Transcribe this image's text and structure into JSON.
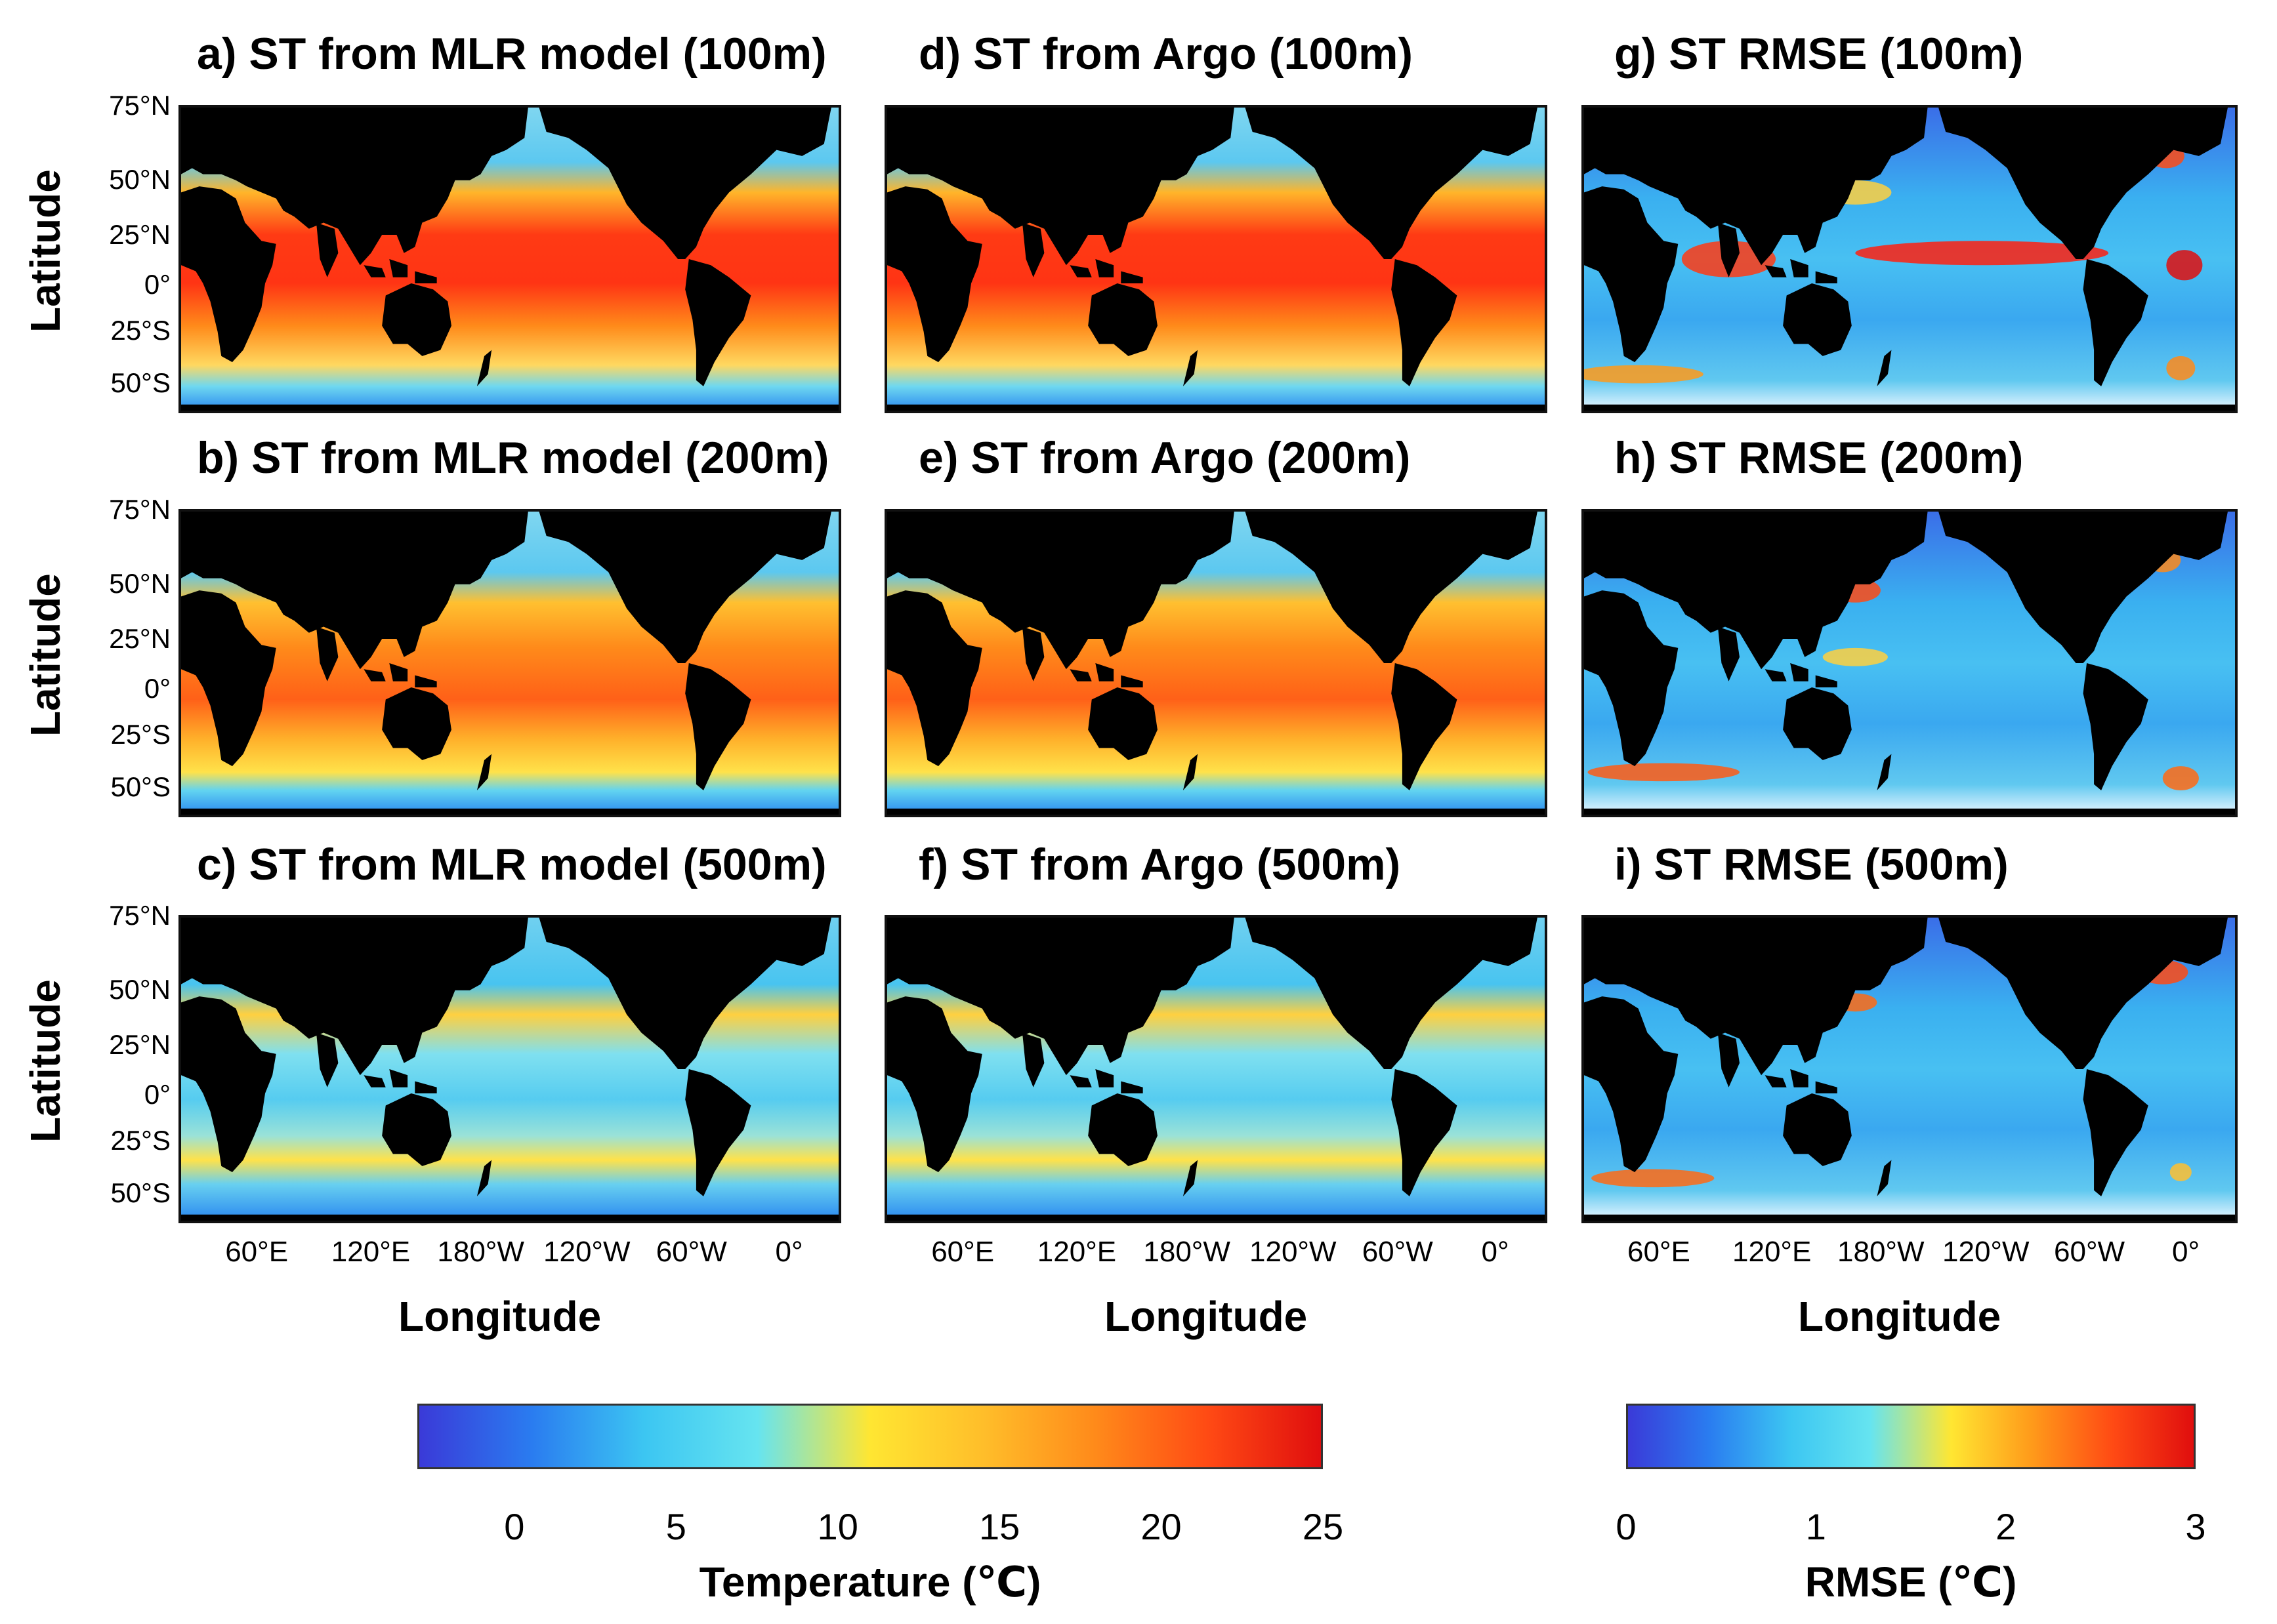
{
  "panels": [
    {
      "title": "a) ST from MLR model (100m)",
      "kind": "temp",
      "depth": "100m"
    },
    {
      "title": "d) ST from Argo (100m)",
      "kind": "temp",
      "depth": "100m"
    },
    {
      "title": "g) ST RMSE (100m)",
      "kind": "rmse",
      "depth": "100m"
    },
    {
      "title": "b) ST from MLR model (200m)",
      "kind": "temp",
      "depth": "200m"
    },
    {
      "title": "e) ST from Argo (200m)",
      "kind": "temp",
      "depth": "200m"
    },
    {
      "title": "h) ST RMSE (200m)",
      "kind": "rmse",
      "depth": "200m"
    },
    {
      "title": "c) ST from MLR model (500m)",
      "kind": "temp",
      "depth": "500m"
    },
    {
      "title": "f) ST from Argo (500m)",
      "kind": "temp",
      "depth": "500m"
    },
    {
      "title": "i) ST RMSE (500m)",
      "kind": "rmse",
      "depth": "500m"
    }
  ],
  "axes": {
    "ylabel": "Latitude",
    "xlabel": "Longitude",
    "lat_ticks": [
      "75°N",
      "50°N",
      "25°N",
      "0°",
      "25°S",
      "50°S"
    ],
    "lon_ticks": [
      "60°E",
      "120°E",
      "180°W",
      "120°W",
      "60°W",
      "0°"
    ]
  },
  "colorbars": {
    "temperature": {
      "label": "Temperature (℃)",
      "ticks": [
        "0",
        "5",
        "10",
        "15",
        "20",
        "25"
      ],
      "range": [
        -3,
        25
      ],
      "colors": [
        "#3a3ad8",
        "#2a7cf0",
        "#3cc6f2",
        "#66e4f0",
        "#ffe632",
        "#ffbe2a",
        "#ff8a1a",
        "#ff4a14",
        "#e00e0e"
      ]
    },
    "rmse": {
      "label": "RMSE (℃)",
      "ticks": [
        "0",
        "1",
        "2",
        "3"
      ],
      "range": [
        0,
        3
      ],
      "colors": [
        "#3a3ad8",
        "#2a7cf0",
        "#3cc6f2",
        "#66e4f0",
        "#ffe632",
        "#ff9a1a",
        "#ff4a14",
        "#e00e0e"
      ]
    }
  },
  "colors": {
    "land": "#000000",
    "border": "#111111"
  }
}
